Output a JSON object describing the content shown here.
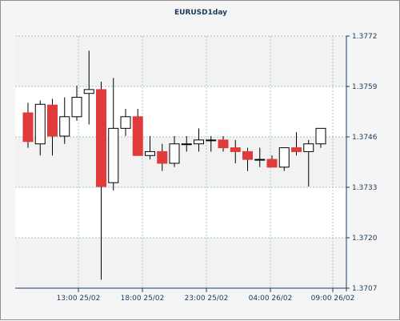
{
  "chart_data": {
    "type": "candlestick",
    "title": "EURUSD1day",
    "xlabel": "",
    "ylabel": "",
    "ylim": [
      1.3707,
      1.3772
    ],
    "y_ticks": [
      "1.3772",
      "1.3759",
      "1.3746",
      "1.3733",
      "1.3720",
      "1.3707"
    ],
    "x_ticks": [
      "13:00 25/02",
      "18:00 25/02",
      "23:00 25/02",
      "04:00 26/02",
      "09:00 26/02"
    ],
    "grid": true,
    "colors": {
      "up": "#ffffff",
      "down": "#e03a3a",
      "wick": "#000000",
      "grid": "#9ec9c9",
      "plot_bg": "#ffffff",
      "band": "#f2f2f2"
    },
    "candles": [
      {
        "open": 1.37522,
        "high": 1.37548,
        "low": 1.37432,
        "close": 1.37448
      },
      {
        "open": 1.37442,
        "high": 1.37554,
        "low": 1.37412,
        "close": 1.37544
      },
      {
        "open": 1.37542,
        "high": 1.37558,
        "low": 1.37412,
        "close": 1.37462
      },
      {
        "open": 1.37462,
        "high": 1.37562,
        "low": 1.37442,
        "close": 1.37512
      },
      {
        "open": 1.37512,
        "high": 1.37592,
        "low": 1.37502,
        "close": 1.37562
      },
      {
        "open": 1.37572,
        "high": 1.37682,
        "low": 1.37492,
        "close": 1.37582
      },
      {
        "open": 1.37582,
        "high": 1.37602,
        "low": 1.37092,
        "close": 1.37332
      },
      {
        "open": 1.37342,
        "high": 1.37612,
        "low": 1.37322,
        "close": 1.37482
      },
      {
        "open": 1.37482,
        "high": 1.37532,
        "low": 1.37462,
        "close": 1.37512
      },
      {
        "open": 1.37512,
        "high": 1.37532,
        "low": 1.37412,
        "close": 1.37412
      },
      {
        "open": 1.37412,
        "high": 1.37462,
        "low": 1.37402,
        "close": 1.37422
      },
      {
        "open": 1.37422,
        "high": 1.37442,
        "low": 1.37372,
        "close": 1.37392
      },
      {
        "open": 1.37392,
        "high": 1.37462,
        "low": 1.37382,
        "close": 1.37442
      },
      {
        "open": 1.37442,
        "high": 1.37462,
        "low": 1.37422,
        "close": 1.37442
      },
      {
        "open": 1.37442,
        "high": 1.37482,
        "low": 1.37422,
        "close": 1.37452
      },
      {
        "open": 1.37452,
        "high": 1.37462,
        "low": 1.37422,
        "close": 1.37452
      },
      {
        "open": 1.37452,
        "high": 1.37462,
        "low": 1.37422,
        "close": 1.37432
      },
      {
        "open": 1.37432,
        "high": 1.37452,
        "low": 1.37392,
        "close": 1.37422
      },
      {
        "open": 1.37422,
        "high": 1.37432,
        "low": 1.37372,
        "close": 1.37402
      },
      {
        "open": 1.37402,
        "high": 1.37432,
        "low": 1.37382,
        "close": 1.37402
      },
      {
        "open": 1.37402,
        "high": 1.37412,
        "low": 1.37382,
        "close": 1.37382
      },
      {
        "open": 1.37382,
        "high": 1.37432,
        "low": 1.37372,
        "close": 1.37432
      },
      {
        "open": 1.37432,
        "high": 1.37472,
        "low": 1.37412,
        "close": 1.37422
      },
      {
        "open": 1.37422,
        "high": 1.37452,
        "low": 1.37332,
        "close": 1.37442
      },
      {
        "open": 1.37442,
        "high": 1.37482,
        "low": 1.37432,
        "close": 1.37482
      }
    ]
  }
}
